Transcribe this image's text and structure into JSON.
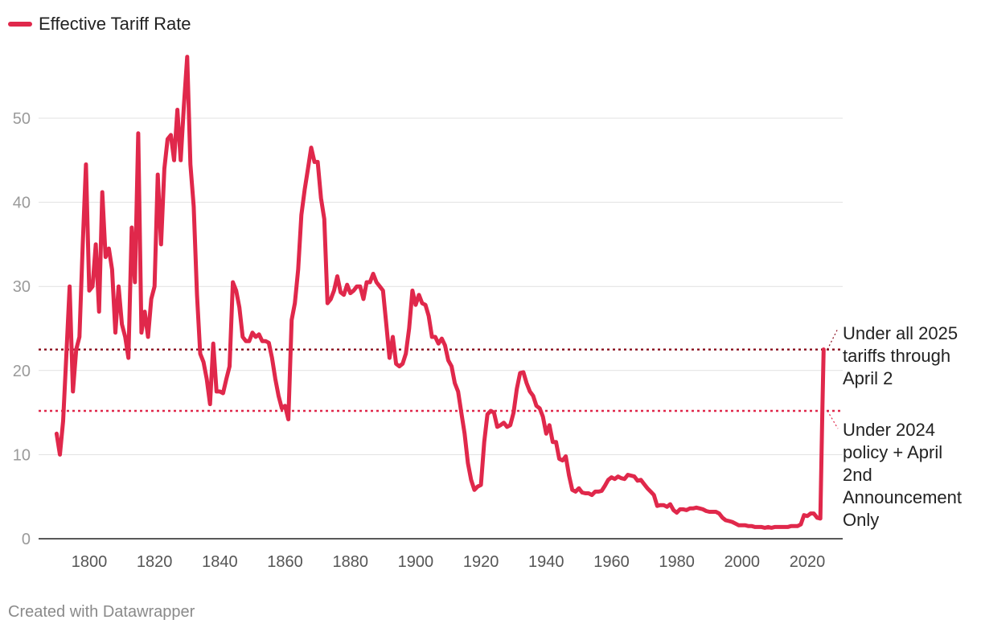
{
  "legend": {
    "label": "Effective Tariff Rate",
    "color": "#e0284b"
  },
  "footer": "Created with Datawrapper",
  "chart_data": {
    "type": "line",
    "title": "",
    "xlabel": "",
    "ylabel": "",
    "xlim": [
      1788,
      2026
    ],
    "ylim": [
      0,
      57
    ],
    "x_ticks": [
      1800,
      1820,
      1840,
      1860,
      1880,
      1900,
      1920,
      1940,
      1960,
      1980,
      2000,
      2020
    ],
    "y_ticks": [
      0,
      10,
      20,
      30,
      40,
      50
    ],
    "grid": "horizontal",
    "legend_position": "top-left",
    "series": [
      {
        "name": "Effective Tariff Rate",
        "color": "#e0284b",
        "points": [
          [
            1790,
            12.5
          ],
          [
            1791,
            10.0
          ],
          [
            1792,
            14.0
          ],
          [
            1793,
            22.0
          ],
          [
            1794,
            30.0
          ],
          [
            1795,
            17.5
          ],
          [
            1796,
            22.5
          ],
          [
            1797,
            24.0
          ],
          [
            1798,
            35.0
          ],
          [
            1799,
            44.5
          ],
          [
            1800,
            29.5
          ],
          [
            1801,
            30.0
          ],
          [
            1802,
            35.0
          ],
          [
            1803,
            27.0
          ],
          [
            1804,
            41.2
          ],
          [
            1805,
            33.5
          ],
          [
            1806,
            34.5
          ],
          [
            1807,
            32.0
          ],
          [
            1808,
            24.5
          ],
          [
            1809,
            30.0
          ],
          [
            1810,
            25.5
          ],
          [
            1811,
            24.0
          ],
          [
            1812,
            21.5
          ],
          [
            1813,
            37.0
          ],
          [
            1814,
            30.5
          ],
          [
            1815,
            48.2
          ],
          [
            1816,
            24.5
          ],
          [
            1817,
            27.0
          ],
          [
            1818,
            24.0
          ],
          [
            1819,
            28.5
          ],
          [
            1820,
            30.0
          ],
          [
            1821,
            43.3
          ],
          [
            1822,
            35.0
          ],
          [
            1823,
            44.0
          ],
          [
            1824,
            47.5
          ],
          [
            1825,
            48.0
          ],
          [
            1826,
            45.0
          ],
          [
            1827,
            51.0
          ],
          [
            1828,
            45.0
          ],
          [
            1829,
            51.5
          ],
          [
            1830,
            57.3
          ],
          [
            1831,
            44.5
          ],
          [
            1832,
            39.5
          ],
          [
            1833,
            29.0
          ],
          [
            1834,
            22.0
          ],
          [
            1835,
            21.0
          ],
          [
            1836,
            19.0
          ],
          [
            1837,
            16.0
          ],
          [
            1838,
            23.2
          ],
          [
            1839,
            17.5
          ],
          [
            1840,
            17.5
          ],
          [
            1841,
            17.3
          ],
          [
            1842,
            19.0
          ],
          [
            1843,
            20.5
          ],
          [
            1844,
            30.5
          ],
          [
            1845,
            29.5
          ],
          [
            1846,
            27.5
          ],
          [
            1847,
            24.0
          ],
          [
            1848,
            23.5
          ],
          [
            1849,
            23.5
          ],
          [
            1850,
            24.5
          ],
          [
            1851,
            24.0
          ],
          [
            1852,
            24.3
          ],
          [
            1853,
            23.5
          ],
          [
            1854,
            23.5
          ],
          [
            1855,
            23.3
          ],
          [
            1856,
            21.5
          ],
          [
            1857,
            19.0
          ],
          [
            1858,
            17.0
          ],
          [
            1859,
            15.5
          ],
          [
            1860,
            15.8
          ],
          [
            1861,
            14.2
          ],
          [
            1862,
            26.0
          ],
          [
            1863,
            28.0
          ],
          [
            1864,
            32.0
          ],
          [
            1865,
            38.5
          ],
          [
            1866,
            41.5
          ],
          [
            1867,
            44.0
          ],
          [
            1868,
            46.5
          ],
          [
            1869,
            44.8
          ],
          [
            1870,
            44.8
          ],
          [
            1871,
            40.5
          ],
          [
            1872,
            38.0
          ],
          [
            1873,
            28.0
          ],
          [
            1874,
            28.5
          ],
          [
            1875,
            29.5
          ],
          [
            1876,
            31.2
          ],
          [
            1877,
            29.3
          ],
          [
            1878,
            29.0
          ],
          [
            1879,
            30.2
          ],
          [
            1880,
            29.2
          ],
          [
            1881,
            29.5
          ],
          [
            1882,
            30.0
          ],
          [
            1883,
            30.0
          ],
          [
            1884,
            28.5
          ],
          [
            1885,
            30.5
          ],
          [
            1886,
            30.5
          ],
          [
            1887,
            31.5
          ],
          [
            1888,
            30.5
          ],
          [
            1889,
            30.0
          ],
          [
            1890,
            29.5
          ],
          [
            1891,
            25.5
          ],
          [
            1892,
            21.5
          ],
          [
            1893,
            24.0
          ],
          [
            1894,
            20.8
          ],
          [
            1895,
            20.5
          ],
          [
            1896,
            20.8
          ],
          [
            1897,
            22.0
          ],
          [
            1898,
            25.0
          ],
          [
            1899,
            29.5
          ],
          [
            1900,
            27.8
          ],
          [
            1901,
            29.0
          ],
          [
            1902,
            28.0
          ],
          [
            1903,
            27.8
          ],
          [
            1904,
            26.5
          ],
          [
            1905,
            24.0
          ],
          [
            1906,
            24.0
          ],
          [
            1907,
            23.2
          ],
          [
            1908,
            23.8
          ],
          [
            1909,
            23.0
          ],
          [
            1910,
            21.2
          ],
          [
            1911,
            20.5
          ],
          [
            1912,
            18.5
          ],
          [
            1913,
            17.5
          ],
          [
            1914,
            15.0
          ],
          [
            1915,
            12.5
          ],
          [
            1916,
            9.0
          ],
          [
            1917,
            7.0
          ],
          [
            1918,
            5.8
          ],
          [
            1919,
            6.2
          ],
          [
            1920,
            6.4
          ],
          [
            1921,
            11.5
          ],
          [
            1922,
            14.8
          ],
          [
            1923,
            15.2
          ],
          [
            1924,
            15.0
          ],
          [
            1925,
            13.3
          ],
          [
            1926,
            13.5
          ],
          [
            1927,
            13.8
          ],
          [
            1928,
            13.3
          ],
          [
            1929,
            13.5
          ],
          [
            1930,
            15.0
          ],
          [
            1931,
            17.8
          ],
          [
            1932,
            19.7
          ],
          [
            1933,
            19.8
          ],
          [
            1934,
            18.5
          ],
          [
            1935,
            17.5
          ],
          [
            1936,
            17.0
          ],
          [
            1937,
            15.8
          ],
          [
            1938,
            15.5
          ],
          [
            1939,
            14.5
          ],
          [
            1940,
            12.5
          ],
          [
            1941,
            13.5
          ],
          [
            1942,
            11.5
          ],
          [
            1943,
            11.5
          ],
          [
            1944,
            9.5
          ],
          [
            1945,
            9.3
          ],
          [
            1946,
            9.8
          ],
          [
            1947,
            7.5
          ],
          [
            1948,
            5.8
          ],
          [
            1949,
            5.6
          ],
          [
            1950,
            6.0
          ],
          [
            1951,
            5.5
          ],
          [
            1952,
            5.4
          ],
          [
            1953,
            5.4
          ],
          [
            1954,
            5.2
          ],
          [
            1955,
            5.6
          ],
          [
            1956,
            5.6
          ],
          [
            1957,
            5.7
          ],
          [
            1958,
            6.3
          ],
          [
            1959,
            7.0
          ],
          [
            1960,
            7.3
          ],
          [
            1961,
            7.1
          ],
          [
            1962,
            7.4
          ],
          [
            1963,
            7.2
          ],
          [
            1964,
            7.1
          ],
          [
            1965,
            7.6
          ],
          [
            1966,
            7.5
          ],
          [
            1967,
            7.4
          ],
          [
            1968,
            6.9
          ],
          [
            1969,
            7.0
          ],
          [
            1970,
            6.5
          ],
          [
            1971,
            6.0
          ],
          [
            1972,
            5.6
          ],
          [
            1973,
            5.2
          ],
          [
            1974,
            3.9
          ],
          [
            1975,
            4.0
          ],
          [
            1976,
            4.0
          ],
          [
            1977,
            3.8
          ],
          [
            1978,
            4.1
          ],
          [
            1979,
            3.4
          ],
          [
            1980,
            3.1
          ],
          [
            1981,
            3.5
          ],
          [
            1982,
            3.5
          ],
          [
            1983,
            3.4
          ],
          [
            1984,
            3.6
          ],
          [
            1985,
            3.6
          ],
          [
            1986,
            3.7
          ],
          [
            1987,
            3.6
          ],
          [
            1988,
            3.5
          ],
          [
            1989,
            3.3
          ],
          [
            1990,
            3.2
          ],
          [
            1991,
            3.2
          ],
          [
            1992,
            3.2
          ],
          [
            1993,
            3.0
          ],
          [
            1994,
            2.5
          ],
          [
            1995,
            2.2
          ],
          [
            1996,
            2.1
          ],
          [
            1997,
            2.0
          ],
          [
            1998,
            1.8
          ],
          [
            1999,
            1.6
          ],
          [
            2000,
            1.6
          ],
          [
            2001,
            1.6
          ],
          [
            2002,
            1.5
          ],
          [
            2003,
            1.5
          ],
          [
            2004,
            1.4
          ],
          [
            2005,
            1.4
          ],
          [
            2006,
            1.4
          ],
          [
            2007,
            1.3
          ],
          [
            2008,
            1.4
          ],
          [
            2009,
            1.3
          ],
          [
            2010,
            1.4
          ],
          [
            2011,
            1.4
          ],
          [
            2012,
            1.4
          ],
          [
            2013,
            1.4
          ],
          [
            2014,
            1.4
          ],
          [
            2015,
            1.5
          ],
          [
            2016,
            1.5
          ],
          [
            2017,
            1.5
          ],
          [
            2018,
            1.7
          ],
          [
            2019,
            2.8
          ],
          [
            2020,
            2.7
          ],
          [
            2021,
            3.0
          ],
          [
            2022,
            3.0
          ],
          [
            2023,
            2.5
          ],
          [
            2024,
            2.4
          ],
          [
            2024.6,
            15.2
          ],
          [
            2025,
            22.5
          ]
        ]
      }
    ],
    "reference_lines": [
      {
        "y": 22.5,
        "color": "#8b0f1f",
        "label_lines": [
          "Under all 2025",
          "tariffs through",
          "April 2"
        ]
      },
      {
        "y": 15.2,
        "color": "#e0284b",
        "label_lines": [
          "Under 2024",
          "policy + April",
          "2nd",
          "Announcement",
          "Only"
        ]
      }
    ]
  }
}
